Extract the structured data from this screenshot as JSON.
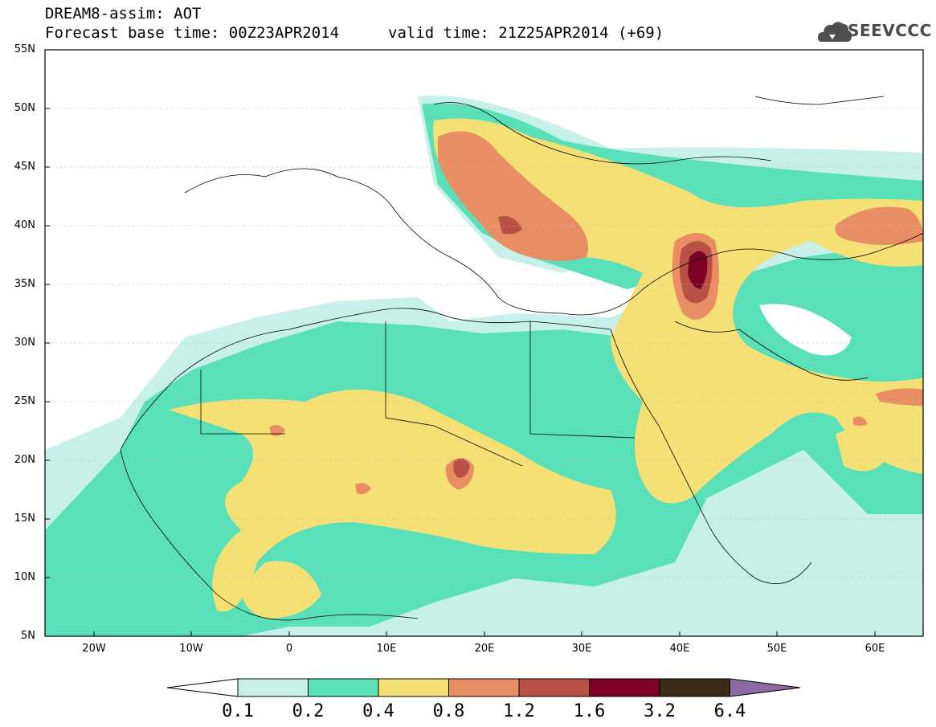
{
  "header": {
    "title": "DREAM8-assim: AOT",
    "base_time": "Forecast base time: 00Z23APR2014",
    "valid_time": "valid time: 21Z25APR2014 (+69)"
  },
  "logo": {
    "text": "SEEVCCC",
    "icon": "cloud-icon"
  },
  "map": {
    "lat_labels": [
      "55N",
      "50N",
      "45N",
      "40N",
      "35N",
      "30N",
      "25N",
      "20N",
      "15N",
      "10N",
      "5N"
    ],
    "lon_labels": [
      "20W",
      "10W",
      "0",
      "10E",
      "20E",
      "30E",
      "40E",
      "50E",
      "60E"
    ]
  },
  "colorbar": {
    "labels": [
      "0.1",
      "0.2",
      "0.4",
      "0.8",
      "1.2",
      "1.6",
      "3.2",
      "6.4"
    ],
    "colors": [
      "#ffffff",
      "#c6f0e8",
      "#5ae0b8",
      "#f5e075",
      "#e98e64",
      "#b85045",
      "#7d0027",
      "#3e2a18",
      "#8b6aa5"
    ]
  }
}
